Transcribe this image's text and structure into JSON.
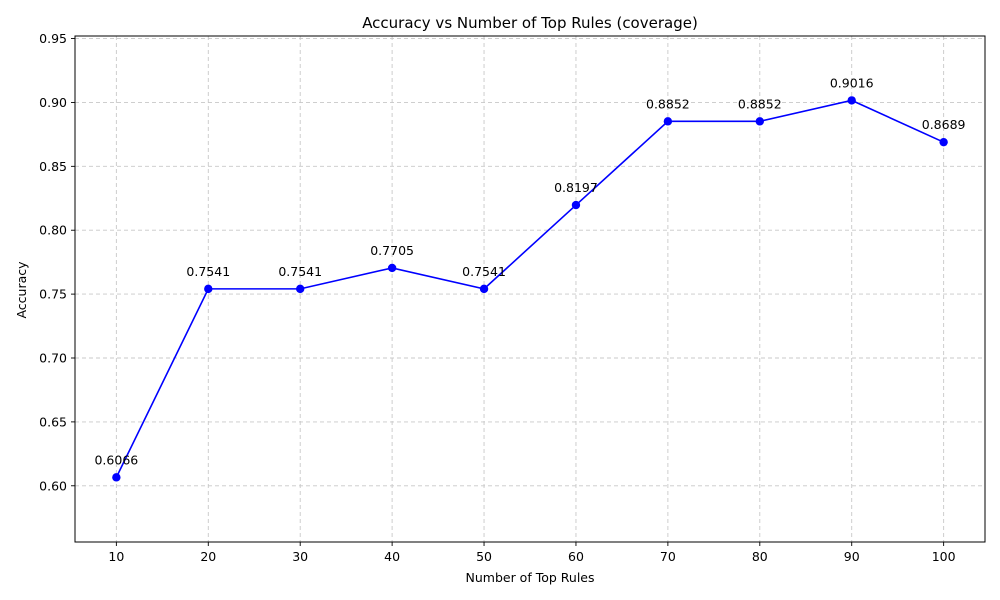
{
  "chart_data": {
    "type": "line",
    "title": "Accuracy vs Number of Top Rules (coverage)",
    "xlabel": "Number of Top Rules",
    "ylabel": "Accuracy",
    "x": [
      10,
      20,
      30,
      40,
      50,
      60,
      70,
      80,
      90,
      100
    ],
    "series": [
      {
        "values": [
          0.6066,
          0.7541,
          0.7541,
          0.7705,
          0.7541,
          0.8197,
          0.8852,
          0.8852,
          0.9016,
          0.8689
        ],
        "labels": [
          "0.6066",
          "0.7541",
          "0.7541",
          "0.7705",
          "0.7541",
          "0.8197",
          "0.8852",
          "0.8852",
          "0.9016",
          "0.8689"
        ],
        "color": "#0000ff",
        "marker": "circle"
      }
    ],
    "xticks": [
      "10",
      "20",
      "30",
      "40",
      "50",
      "60",
      "70",
      "80",
      "90",
      "100"
    ],
    "yticks": [
      "0.60",
      "0.65",
      "0.70",
      "0.75",
      "0.80",
      "0.85",
      "0.90",
      "0.95"
    ],
    "xlim": [
      5.5,
      104.5
    ],
    "ylim": [
      0.556,
      0.952
    ],
    "grid": true,
    "grid_style": "dashed"
  }
}
